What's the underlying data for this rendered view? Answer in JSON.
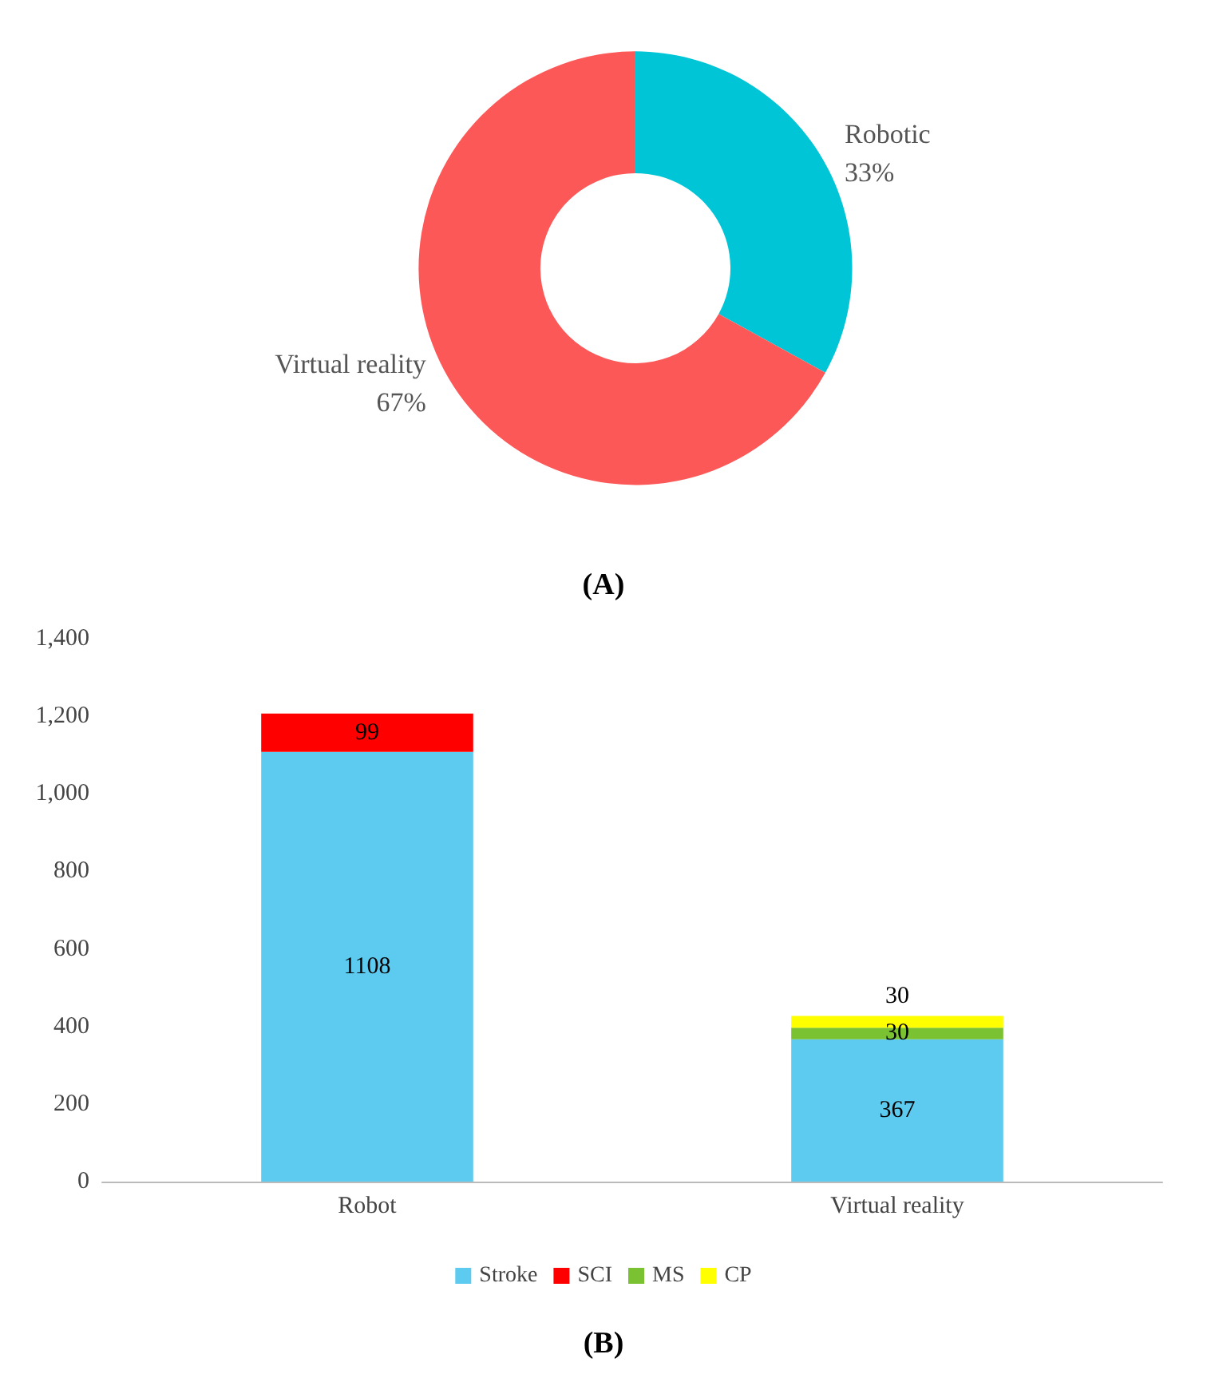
{
  "chart_data": [
    {
      "type": "donut",
      "categories": [
        "Robotic",
        "Virtual reality"
      ],
      "values": [
        33,
        67
      ],
      "value_labels": [
        "33%",
        "67%"
      ],
      "colors": [
        "#00c5d6",
        "#fd5858"
      ],
      "annotations": [
        "(A)"
      ],
      "legend": false
    },
    {
      "type": "bar",
      "stacked": true,
      "categories": [
        "Robot",
        "Virtual reality"
      ],
      "series": [
        {
          "name": "Stroke",
          "color": "#5dcbf0",
          "values": [
            1108,
            367
          ]
        },
        {
          "name": "SCI",
          "color": "#ff0000",
          "values": [
            99,
            null
          ]
        },
        {
          "name": "MS",
          "color": "#7ac231",
          "values": [
            null,
            30
          ]
        },
        {
          "name": "CP",
          "color": "#ffff00",
          "values": [
            null,
            30
          ]
        }
      ],
      "ylim": [
        0,
        1400
      ],
      "yticks": [
        0,
        200,
        400,
        600,
        800,
        {
          "value": 1000,
          "label": "1,000"
        },
        {
          "value": 1200,
          "label": "1,200"
        },
        {
          "value": 1400,
          "label": "1,400"
        }
      ],
      "grid": false,
      "legend": "bottom",
      "data_labels": true,
      "annotations": [
        "(B)"
      ]
    }
  ]
}
